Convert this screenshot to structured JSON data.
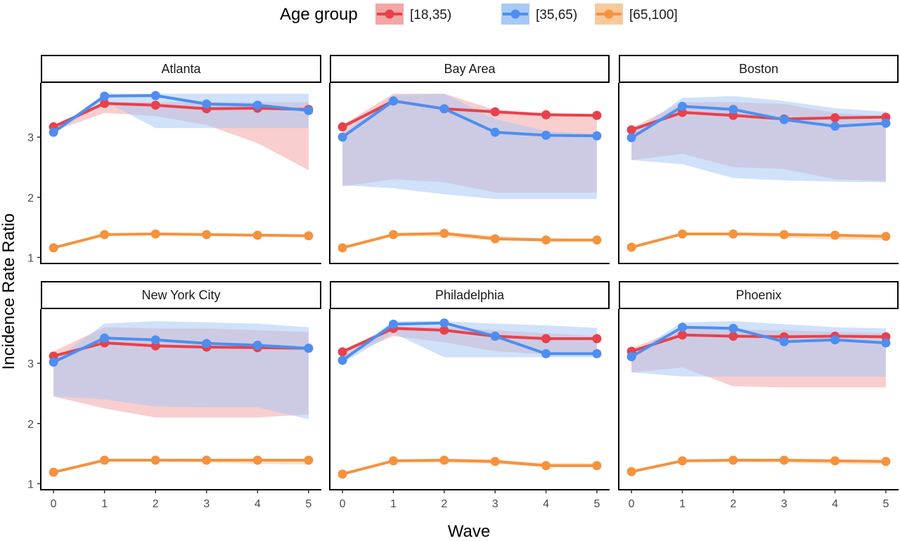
{
  "chart_data": {
    "type": "line",
    "layout": "facet-grid 2x3",
    "xlabel": "Wave",
    "ylabel": "Incidence Rate Ratio",
    "x": [
      0,
      1,
      2,
      3,
      4,
      5
    ],
    "x_ticks": [
      "0",
      "1",
      "2",
      "3",
      "4",
      "5"
    ],
    "y_ticks": [
      "1",
      "2",
      "3"
    ],
    "ylim": [
      0.9,
      3.9
    ],
    "legend": {
      "title": "Age group",
      "position": "top",
      "entries": [
        {
          "label": "[18,35)",
          "color": "#e8414b",
          "fill": "#f4a6a6"
        },
        {
          "label": "[35,65)",
          "color": "#4d8ef0",
          "fill": "#a9c9f5"
        },
        {
          "label": "[65,100]",
          "color": "#f5923d",
          "fill": "#f9c99b"
        }
      ]
    },
    "panels": [
      {
        "title": "Atlanta",
        "series": [
          {
            "group": "[18,35)",
            "values": [
              3.17,
              3.56,
              3.53,
              3.47,
              3.48,
              3.46
            ],
            "lower": [
              3.1,
              3.4,
              3.35,
              3.2,
              2.9,
              2.45
            ],
            "upper": [
              3.2,
              3.58,
              3.58,
              3.58,
              3.58,
              3.58
            ]
          },
          {
            "group": "[35,65)",
            "values": [
              3.08,
              3.68,
              3.69,
              3.55,
              3.53,
              3.44
            ],
            "lower": [
              3.05,
              3.6,
              3.15,
              3.15,
              3.15,
              3.15
            ],
            "upper": [
              3.1,
              3.72,
              3.72,
              3.72,
              3.72,
              3.72
            ]
          },
          {
            "group": "[65,100]",
            "values": [
              1.16,
              1.38,
              1.39,
              1.38,
              1.37,
              1.36
            ],
            "lower": [
              1.15,
              1.36,
              1.37,
              1.36,
              1.35,
              1.34
            ],
            "upper": [
              1.17,
              1.4,
              1.41,
              1.4,
              1.39,
              1.38
            ]
          }
        ]
      },
      {
        "title": "Bay Area",
        "series": [
          {
            "group": "[18,35)",
            "values": [
              3.17,
              3.6,
              3.47,
              3.42,
              3.37,
              3.36
            ],
            "lower": [
              2.18,
              2.3,
              2.25,
              2.08,
              2.08,
              2.08
            ],
            "upper": [
              3.2,
              3.72,
              3.72,
              3.45,
              3.4,
              3.38
            ]
          },
          {
            "group": "[35,65)",
            "values": [
              3.0,
              3.6,
              3.47,
              3.08,
              3.03,
              3.02
            ],
            "lower": [
              2.2,
              2.15,
              2.05,
              1.97,
              1.97,
              1.97
            ],
            "upper": [
              3.05,
              3.7,
              3.72,
              3.3,
              3.1,
              3.05
            ]
          },
          {
            "group": "[65,100]",
            "values": [
              1.16,
              1.38,
              1.4,
              1.31,
              1.29,
              1.29
            ],
            "lower": [
              1.15,
              1.36,
              1.34,
              1.28,
              1.27,
              1.27
            ],
            "upper": [
              1.17,
              1.4,
              1.42,
              1.36,
              1.32,
              1.31
            ]
          }
        ]
      },
      {
        "title": "Boston",
        "series": [
          {
            "group": "[18,35)",
            "values": [
              3.12,
              3.41,
              3.36,
              3.3,
              3.32,
              3.33
            ],
            "lower": [
              2.62,
              2.72,
              2.5,
              2.47,
              2.3,
              2.27
            ],
            "upper": [
              3.15,
              3.58,
              3.58,
              3.55,
              3.4,
              3.35
            ]
          },
          {
            "group": "[35,65)",
            "values": [
              2.99,
              3.51,
              3.46,
              3.29,
              3.18,
              3.23
            ],
            "lower": [
              2.62,
              2.55,
              2.32,
              2.28,
              2.26,
              2.25
            ],
            "upper": [
              3.05,
              3.65,
              3.68,
              3.6,
              3.48,
              3.42
            ]
          },
          {
            "group": "[65,100]",
            "values": [
              1.17,
              1.39,
              1.39,
              1.38,
              1.37,
              1.35
            ],
            "lower": [
              1.16,
              1.37,
              1.37,
              1.33,
              1.3,
              1.29
            ],
            "upper": [
              1.18,
              1.41,
              1.41,
              1.4,
              1.39,
              1.37
            ]
          }
        ]
      },
      {
        "title": "New York City",
        "series": [
          {
            "group": "[18,35)",
            "values": [
              3.12,
              3.34,
              3.29,
              3.27,
              3.26,
              3.25
            ],
            "lower": [
              2.45,
              2.25,
              2.1,
              2.1,
              2.1,
              2.15
            ],
            "upper": [
              3.2,
              3.6,
              3.58,
              3.58,
              3.55,
              3.52
            ]
          },
          {
            "group": "[35,65)",
            "values": [
              3.02,
              3.42,
              3.39,
              3.33,
              3.3,
              3.25
            ],
            "lower": [
              2.45,
              2.4,
              2.28,
              2.27,
              2.27,
              2.07
            ],
            "upper": [
              3.05,
              3.66,
              3.7,
              3.68,
              3.66,
              3.6
            ]
          },
          {
            "group": "[65,100]",
            "values": [
              1.19,
              1.39,
              1.39,
              1.39,
              1.39,
              1.39
            ],
            "lower": [
              1.18,
              1.37,
              1.37,
              1.35,
              1.33,
              1.32
            ],
            "upper": [
              1.2,
              1.41,
              1.41,
              1.41,
              1.41,
              1.41
            ]
          }
        ]
      },
      {
        "title": "Philadelphia",
        "series": [
          {
            "group": "[18,35)",
            "values": [
              3.19,
              3.58,
              3.55,
              3.45,
              3.41,
              3.41
            ],
            "lower": [
              3.1,
              3.45,
              3.35,
              3.2,
              3.15,
              3.15
            ],
            "upper": [
              3.22,
              3.62,
              3.6,
              3.55,
              3.5,
              3.45
            ]
          },
          {
            "group": "[35,65)",
            "values": [
              3.05,
              3.65,
              3.67,
              3.45,
              3.16,
              3.16
            ],
            "lower": [
              3.0,
              3.5,
              3.1,
              3.1,
              3.1,
              3.1
            ],
            "upper": [
              3.1,
              3.7,
              3.7,
              3.66,
              3.63,
              3.59
            ]
          },
          {
            "group": "[65,100]",
            "values": [
              1.16,
              1.38,
              1.39,
              1.37,
              1.3,
              1.3
            ],
            "lower": [
              1.15,
              1.36,
              1.35,
              1.33,
              1.28,
              1.28
            ],
            "upper": [
              1.17,
              1.4,
              1.41,
              1.4,
              1.34,
              1.34
            ]
          }
        ]
      },
      {
        "title": "Phoenix",
        "series": [
          {
            "group": "[18,35)",
            "values": [
              3.2,
              3.47,
              3.45,
              3.44,
              3.45,
              3.44
            ],
            "lower": [
              2.85,
              2.93,
              2.62,
              2.6,
              2.6,
              2.6
            ],
            "upper": [
              3.25,
              3.58,
              3.56,
              3.55,
              3.52,
              3.5
            ]
          },
          {
            "group": "[35,65)",
            "values": [
              3.11,
              3.6,
              3.58,
              3.36,
              3.39,
              3.34
            ],
            "lower": [
              2.85,
              2.78,
              2.78,
              2.78,
              2.78,
              2.78
            ],
            "upper": [
              3.15,
              3.68,
              3.7,
              3.65,
              3.6,
              3.58
            ]
          },
          {
            "group": "[65,100]",
            "values": [
              1.2,
              1.38,
              1.39,
              1.39,
              1.38,
              1.37
            ],
            "lower": [
              1.19,
              1.36,
              1.36,
              1.35,
              1.33,
              1.32
            ],
            "upper": [
              1.21,
              1.4,
              1.41,
              1.41,
              1.4,
              1.39
            ]
          }
        ]
      }
    ]
  }
}
